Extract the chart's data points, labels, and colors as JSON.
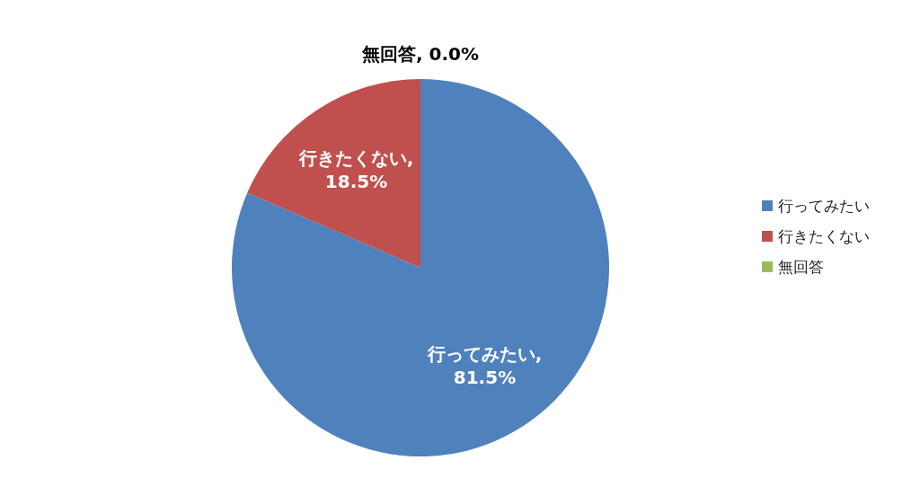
{
  "chart_data": {
    "type": "pie",
    "categories": [
      "行ってみたい",
      "行きたくない",
      "無回答"
    ],
    "values": [
      81.5,
      18.5,
      0.0
    ],
    "colors": [
      "#4f81bd",
      "#c0504d",
      "#9bbb59"
    ],
    "value_labels": [
      "行ってみたい,\n81.5%",
      "行きたくない,\n18.5%",
      "無回答, 0.0%"
    ],
    "legend": "right"
  }
}
